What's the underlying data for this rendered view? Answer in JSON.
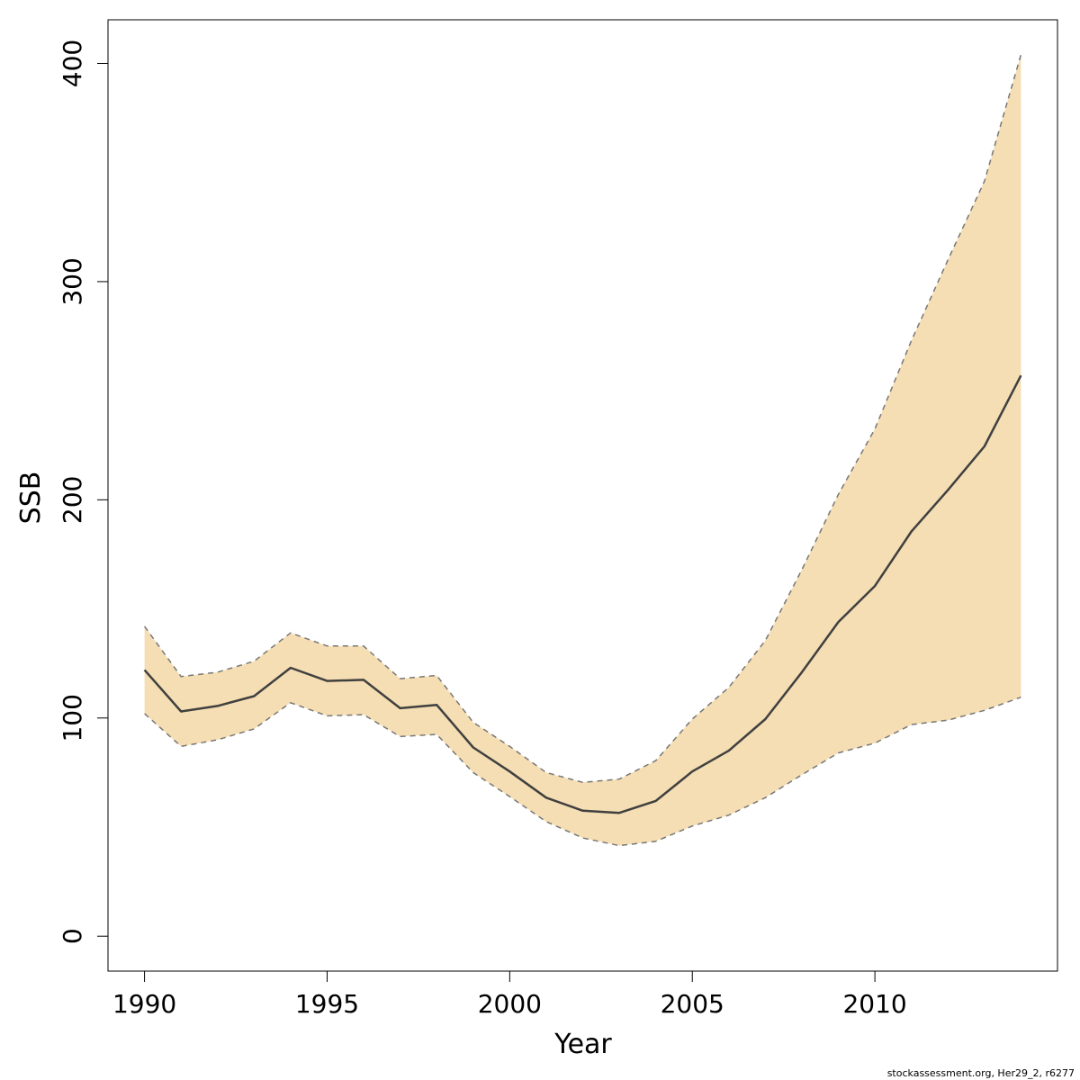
{
  "chart_data": {
    "type": "area",
    "title": "",
    "xlabel": "Year",
    "ylabel": "SSB",
    "xlim": [
      1989,
      2015
    ],
    "ylim": [
      -16,
      420
    ],
    "xticks": [
      1990,
      1995,
      2000,
      2005,
      2010
    ],
    "yticks": [
      0,
      100,
      200,
      300,
      400
    ],
    "grid": false,
    "legend": "none",
    "x": [
      1990,
      1991,
      1992,
      1993,
      1994,
      1995,
      1996,
      1997,
      1998,
      1999,
      2000,
      2001,
      2002,
      2003,
      2004,
      2005,
      2006,
      2007,
      2008,
      2009,
      2010,
      2011,
      2012,
      2013,
      2014
    ],
    "series": [
      {
        "role": "estimate",
        "values": [
          122,
          103,
          105.5,
          110,
          123,
          117,
          117.5,
          104.5,
          106,
          86.5,
          75.5,
          63.5,
          57.5,
          56.5,
          62,
          75.5,
          85,
          99.5,
          121,
          144,
          160.5,
          185.5,
          204.5,
          224.5,
          257
        ]
      },
      {
        "role": "upper",
        "values": [
          142,
          119,
          121,
          126,
          139,
          133,
          133,
          118,
          119.5,
          98,
          87,
          75,
          70.5,
          72,
          80.5,
          99.5,
          114,
          135.5,
          168,
          202.5,
          232.5,
          273,
          310,
          346,
          404
        ]
      },
      {
        "role": "lower",
        "values": [
          102,
          87,
          90,
          95,
          107,
          101,
          101.5,
          91.5,
          92.5,
          75,
          64,
          52.5,
          45,
          41.5,
          43.5,
          50.5,
          55.5,
          63.5,
          74,
          84,
          88.5,
          97,
          99,
          103.5,
          109.5
        ]
      }
    ],
    "colors": {
      "band_fill": "#F5DEB3",
      "band_border": "#777777",
      "line": "#404040",
      "axis": "#000000"
    }
  },
  "footer": {
    "note": "stockassessment.org, Her29_2, r6277"
  }
}
